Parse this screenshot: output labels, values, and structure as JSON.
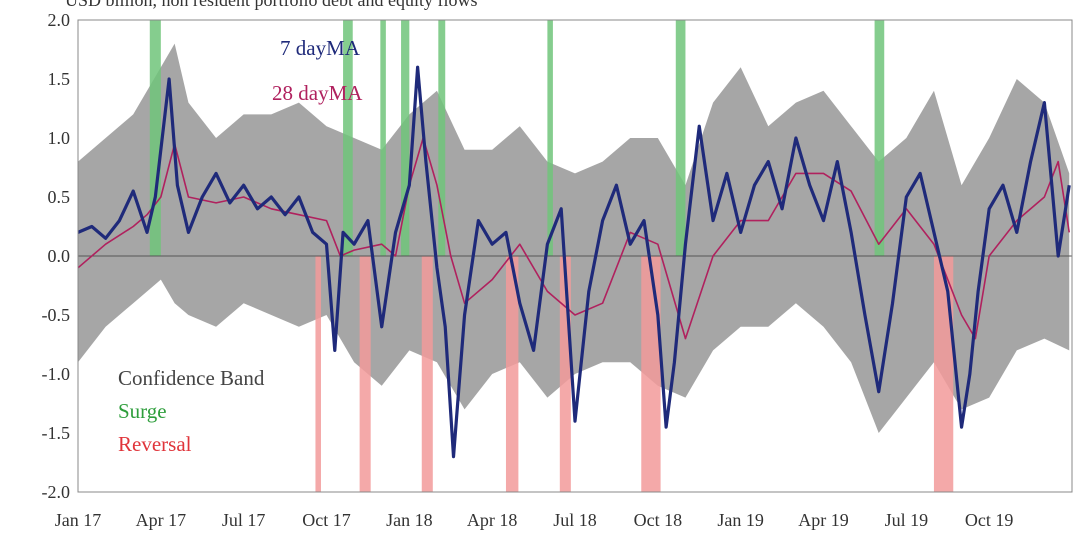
{
  "chart_data": {
    "type": "line",
    "subtitle": "USD  billion, non resident portfolio debt and equity flows",
    "ylim": [
      -2.0,
      2.0
    ],
    "y_ticks": [
      "2.0",
      "1.5",
      "1.0",
      "0.5",
      "0.0",
      "-0.5",
      "-1.0",
      "-1.5",
      "-2.0"
    ],
    "y_tick_values": [
      2.0,
      1.5,
      1.0,
      0.5,
      0.0,
      -0.5,
      -1.0,
      -1.5,
      -2.0
    ],
    "x_tick_labels": [
      "Jan 17",
      "Apr 17",
      "Jul 17",
      "Oct 17",
      "Jan 18",
      "Apr 18",
      "Jul 18",
      "Oct 18",
      "Jan 19",
      "Apr 19",
      "Jul 19",
      "Oct 19"
    ],
    "x_tick_months": [
      0,
      3,
      6,
      9,
      12,
      15,
      18,
      21,
      24,
      27,
      30,
      33
    ],
    "x_range_months": [
      0,
      36
    ],
    "grid": false,
    "series": [
      {
        "name": "7 dayMA",
        "color": "#1f2a7a",
        "x": [
          0,
          0.5,
          1,
          1.5,
          2,
          2.5,
          2.8,
          3,
          3.3,
          3.6,
          4,
          4.5,
          5,
          5.5,
          6,
          6.5,
          7,
          7.5,
          8,
          8.5,
          9,
          9.3,
          9.6,
          10,
          10.5,
          11,
          11.5,
          12,
          12.3,
          12.6,
          13,
          13.3,
          13.6,
          14,
          14.5,
          15,
          15.5,
          16,
          16.5,
          17,
          17.5,
          18,
          18.5,
          19,
          19.5,
          20,
          20.5,
          21,
          21.3,
          21.6,
          22,
          22.5,
          23,
          23.5,
          24,
          24.5,
          25,
          25.5,
          26,
          26.5,
          27,
          27.5,
          28,
          28.5,
          29,
          29.5,
          30,
          30.5,
          31,
          31.5,
          32,
          32.3,
          32.6,
          33,
          33.5,
          34,
          34.5,
          35,
          35.5,
          35.9
        ],
        "y": [
          0.2,
          0.25,
          0.15,
          0.3,
          0.55,
          0.2,
          0.5,
          0.9,
          1.5,
          0.6,
          0.2,
          0.5,
          0.7,
          0.45,
          0.6,
          0.4,
          0.5,
          0.35,
          0.5,
          0.2,
          0.1,
          -0.8,
          0.2,
          0.1,
          0.3,
          -0.6,
          0.2,
          0.6,
          1.6,
          0.8,
          -0.1,
          -0.6,
          -1.7,
          -0.5,
          0.3,
          0.1,
          0.2,
          -0.4,
          -0.8,
          0.1,
          0.4,
          -1.4,
          -0.3,
          0.3,
          0.6,
          0.1,
          0.3,
          -0.5,
          -1.45,
          -0.9,
          0.1,
          1.1,
          0.3,
          0.7,
          0.2,
          0.6,
          0.8,
          0.4,
          1.0,
          0.6,
          0.3,
          0.8,
          0.2,
          -0.5,
          -1.15,
          -0.4,
          0.5,
          0.7,
          0.2,
          -0.3,
          -1.45,
          -1.0,
          -0.3,
          0.4,
          0.6,
          0.2,
          0.8,
          1.3,
          0.0,
          0.6
        ]
      },
      {
        "name": "28 dayMA",
        "color": "#b0215e",
        "x": [
          0,
          1,
          2,
          2.5,
          3,
          3.5,
          4,
          5,
          6,
          7,
          8,
          9,
          9.5,
          10,
          11,
          11.5,
          12,
          12.5,
          13,
          13.5,
          14,
          15,
          16,
          17,
          18,
          19,
          20,
          21,
          21.5,
          22,
          23,
          24,
          25,
          26,
          27,
          28,
          29,
          30,
          31,
          31.5,
          32,
          32.5,
          33,
          34,
          35,
          35.5,
          35.9
        ],
        "y": [
          -0.1,
          0.1,
          0.25,
          0.35,
          0.5,
          0.95,
          0.5,
          0.45,
          0.5,
          0.4,
          0.35,
          0.3,
          0.0,
          0.05,
          0.1,
          0.0,
          0.6,
          1.0,
          0.6,
          0.0,
          -0.4,
          -0.2,
          0.1,
          -0.3,
          -0.5,
          -0.4,
          0.2,
          0.1,
          -0.3,
          -0.7,
          0.0,
          0.3,
          0.3,
          0.7,
          0.7,
          0.55,
          0.1,
          0.4,
          0.1,
          -0.2,
          -0.5,
          -0.7,
          0.0,
          0.3,
          0.5,
          0.8,
          0.2
        ]
      }
    ],
    "confidence_band": {
      "name": "Confidence Band",
      "color": "#a6a6a6",
      "x": [
        0,
        1,
        2,
        3,
        3.5,
        4,
        5,
        6,
        7,
        8,
        9,
        10,
        11,
        12,
        13,
        14,
        15,
        16,
        17,
        18,
        19,
        20,
        21,
        22,
        23,
        24,
        25,
        26,
        27,
        28,
        29,
        30,
        31,
        32,
        33,
        34,
        35,
        35.9
      ],
      "upper": [
        0.8,
        1.0,
        1.2,
        1.6,
        1.8,
        1.3,
        1.0,
        1.2,
        1.2,
        1.3,
        1.1,
        1.0,
        0.9,
        1.2,
        1.4,
        0.9,
        0.9,
        1.1,
        0.8,
        0.7,
        0.8,
        1.0,
        1.0,
        0.6,
        1.3,
        1.6,
        1.1,
        1.3,
        1.4,
        1.1,
        0.8,
        1.0,
        1.4,
        0.6,
        1.0,
        1.5,
        1.3,
        0.7
      ],
      "lower": [
        -0.9,
        -0.6,
        -0.4,
        -0.2,
        -0.4,
        -0.5,
        -0.6,
        -0.4,
        -0.5,
        -0.6,
        -0.5,
        -0.9,
        -1.1,
        -0.8,
        -0.9,
        -1.3,
        -1.0,
        -0.9,
        -1.2,
        -1.0,
        -0.9,
        -0.9,
        -1.1,
        -1.2,
        -0.8,
        -0.6,
        -0.6,
        -0.4,
        -0.6,
        -0.9,
        -1.5,
        -1.2,
        -0.9,
        -1.3,
        -1.2,
        -0.8,
        -0.7,
        -0.8
      ]
    },
    "surge": {
      "name": "Surge",
      "color": "#70c47a",
      "periods": [
        [
          2.6,
          3.0
        ],
        [
          9.6,
          9.95
        ],
        [
          10.95,
          11.15
        ],
        [
          11.7,
          12.0
        ],
        [
          13.05,
          13.3
        ],
        [
          17.0,
          17.2
        ],
        [
          21.65,
          22.0
        ],
        [
          28.85,
          29.2
        ]
      ]
    },
    "reversal": {
      "name": "Reversal",
      "color": "#f29a9a",
      "periods": [
        [
          8.6,
          8.8
        ],
        [
          10.2,
          10.6
        ],
        [
          12.45,
          12.85
        ],
        [
          15.5,
          15.95
        ],
        [
          17.45,
          17.85
        ],
        [
          20.4,
          21.1
        ],
        [
          31.0,
          31.7
        ]
      ]
    }
  }
}
